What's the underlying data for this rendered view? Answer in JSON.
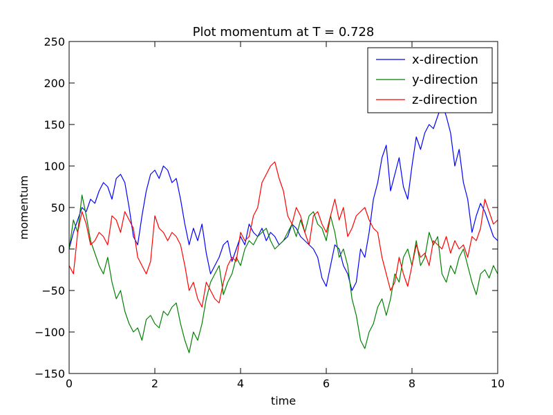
{
  "chart_data": {
    "type": "line",
    "title": "Plot momentum at T = 0.728",
    "xlabel": "time",
    "ylabel": "momentum",
    "xlim": [
      0,
      10
    ],
    "ylim": [
      -150,
      250
    ],
    "xticks": [
      0,
      2,
      4,
      6,
      8,
      10
    ],
    "yticks": [
      -150,
      -100,
      -50,
      0,
      50,
      100,
      150,
      200,
      250
    ],
    "xtick_labels": [
      "0",
      "2",
      "4",
      "6",
      "8",
      "10"
    ],
    "ytick_labels": [
      "−150",
      "−100",
      "−50",
      "0",
      "50",
      "100",
      "150",
      "200",
      "250"
    ],
    "grid": false,
    "legend_position": "top-right",
    "series": [
      {
        "name": "x-direction",
        "color": "#0000ff",
        "x": [
          0,
          0.1,
          0.2,
          0.3,
          0.4,
          0.5,
          0.6,
          0.7,
          0.8,
          0.9,
          1.0,
          1.1,
          1.2,
          1.3,
          1.4,
          1.5,
          1.6,
          1.7,
          1.8,
          1.9,
          2.0,
          2.1,
          2.2,
          2.3,
          2.4,
          2.5,
          2.6,
          2.7,
          2.8,
          2.9,
          3.0,
          3.1,
          3.2,
          3.3,
          3.4,
          3.5,
          3.6,
          3.7,
          3.8,
          3.9,
          4.0,
          4.1,
          4.2,
          4.3,
          4.4,
          4.5,
          4.6,
          4.7,
          4.8,
          4.9,
          5.0,
          5.1,
          5.2,
          5.3,
          5.4,
          5.5,
          5.6,
          5.7,
          5.8,
          5.9,
          6.0,
          6.1,
          6.2,
          6.3,
          6.4,
          6.5,
          6.6,
          6.7,
          6.8,
          6.9,
          7.0,
          7.1,
          7.2,
          7.3,
          7.4,
          7.5,
          7.6,
          7.7,
          7.8,
          7.9,
          8.0,
          8.1,
          8.2,
          8.3,
          8.4,
          8.5,
          8.6,
          8.7,
          8.8,
          8.9,
          9.0,
          9.1,
          9.2,
          9.3,
          9.4,
          9.5,
          9.6,
          9.7,
          9.8,
          9.9,
          10.0
        ],
        "y": [
          0,
          20,
          35,
          50,
          45,
          60,
          55,
          70,
          80,
          75,
          60,
          85,
          90,
          80,
          50,
          15,
          5,
          40,
          70,
          90,
          95,
          85,
          100,
          95,
          80,
          85,
          60,
          30,
          5,
          25,
          10,
          30,
          -5,
          -30,
          -20,
          -10,
          5,
          10,
          -15,
          0,
          15,
          5,
          30,
          20,
          15,
          25,
          10,
          20,
          15,
          5,
          10,
          15,
          30,
          25,
          15,
          10,
          5,
          0,
          -10,
          -35,
          -45,
          -20,
          5,
          0,
          -20,
          -30,
          -50,
          -40,
          0,
          -10,
          20,
          60,
          80,
          110,
          125,
          70,
          90,
          110,
          75,
          60,
          100,
          135,
          120,
          140,
          150,
          145,
          160,
          175,
          160,
          140,
          100,
          120,
          80,
          60,
          20,
          40,
          55,
          45,
          30,
          15,
          10
        ]
      },
      {
        "name": "y-direction",
        "color": "#008000",
        "x": [
          0,
          0.1,
          0.2,
          0.3,
          0.4,
          0.5,
          0.6,
          0.7,
          0.8,
          0.9,
          1.0,
          1.1,
          1.2,
          1.3,
          1.4,
          1.5,
          1.6,
          1.7,
          1.8,
          1.9,
          2.0,
          2.1,
          2.2,
          2.3,
          2.4,
          2.5,
          2.6,
          2.7,
          2.8,
          2.9,
          3.0,
          3.1,
          3.2,
          3.3,
          3.4,
          3.5,
          3.6,
          3.7,
          3.8,
          3.9,
          4.0,
          4.1,
          4.2,
          4.3,
          4.4,
          4.5,
          4.6,
          4.7,
          4.8,
          4.9,
          5.0,
          5.1,
          5.2,
          5.3,
          5.4,
          5.5,
          5.6,
          5.7,
          5.8,
          5.9,
          6.0,
          6.1,
          6.2,
          6.3,
          6.4,
          6.5,
          6.6,
          6.7,
          6.8,
          6.9,
          7.0,
          7.1,
          7.2,
          7.3,
          7.4,
          7.5,
          7.6,
          7.7,
          7.8,
          7.9,
          8.0,
          8.1,
          8.2,
          8.3,
          8.4,
          8.5,
          8.6,
          8.7,
          8.8,
          8.9,
          9.0,
          9.1,
          9.2,
          9.3,
          9.4,
          9.5,
          9.6,
          9.7,
          9.8,
          9.9,
          10.0
        ],
        "y": [
          0,
          35,
          20,
          65,
          40,
          10,
          -5,
          -20,
          -30,
          -10,
          -40,
          -60,
          -50,
          -75,
          -90,
          -100,
          -95,
          -110,
          -85,
          -80,
          -90,
          -95,
          -75,
          -80,
          -70,
          -65,
          -90,
          -110,
          -125,
          -100,
          -110,
          -90,
          -60,
          -40,
          -30,
          -20,
          -55,
          -40,
          -30,
          -10,
          -20,
          0,
          10,
          5,
          15,
          20,
          25,
          10,
          0,
          5,
          10,
          20,
          30,
          15,
          35,
          20,
          40,
          45,
          30,
          25,
          10,
          40,
          20,
          -10,
          0,
          -20,
          -60,
          -80,
          -110,
          -120,
          -100,
          -90,
          -70,
          -60,
          -80,
          -60,
          -30,
          -40,
          -10,
          0,
          -20,
          10,
          -20,
          -10,
          20,
          5,
          15,
          -30,
          -40,
          -20,
          -30,
          -10,
          0,
          -20,
          -40,
          -55,
          -30,
          -25,
          -35,
          -20,
          -30
        ]
      },
      {
        "name": "z-direction",
        "color": "#ff0000",
        "x": [
          0,
          0.1,
          0.2,
          0.3,
          0.4,
          0.5,
          0.6,
          0.7,
          0.8,
          0.9,
          1.0,
          1.1,
          1.2,
          1.3,
          1.4,
          1.5,
          1.6,
          1.7,
          1.8,
          1.9,
          2.0,
          2.1,
          2.2,
          2.3,
          2.4,
          2.5,
          2.6,
          2.7,
          2.8,
          2.9,
          3.0,
          3.1,
          3.2,
          3.3,
          3.4,
          3.5,
          3.6,
          3.7,
          3.8,
          3.9,
          4.0,
          4.1,
          4.2,
          4.3,
          4.4,
          4.5,
          4.6,
          4.7,
          4.8,
          4.9,
          5.0,
          5.1,
          5.2,
          5.3,
          5.4,
          5.5,
          5.6,
          5.7,
          5.8,
          5.9,
          6.0,
          6.1,
          6.2,
          6.3,
          6.4,
          6.5,
          6.6,
          6.7,
          6.8,
          6.9,
          7.0,
          7.1,
          7.2,
          7.3,
          7.4,
          7.5,
          7.6,
          7.7,
          7.8,
          7.9,
          8.0,
          8.1,
          8.2,
          8.3,
          8.4,
          8.5,
          8.6,
          8.7,
          8.8,
          8.9,
          9.0,
          9.1,
          9.2,
          9.3,
          9.4,
          9.5,
          9.6,
          9.7,
          9.8,
          9.9,
          10.0
        ],
        "y": [
          -20,
          -30,
          20,
          45,
          30,
          5,
          10,
          20,
          15,
          5,
          40,
          35,
          20,
          45,
          35,
          25,
          -10,
          -20,
          -30,
          -15,
          40,
          25,
          20,
          10,
          20,
          15,
          5,
          -20,
          -50,
          -40,
          -60,
          -70,
          -40,
          -50,
          -60,
          -65,
          -40,
          -20,
          -10,
          -15,
          20,
          10,
          15,
          40,
          50,
          80,
          90,
          100,
          105,
          85,
          70,
          40,
          30,
          50,
          40,
          20,
          5,
          40,
          45,
          30,
          20,
          40,
          60,
          35,
          50,
          15,
          25,
          40,
          45,
          50,
          35,
          25,
          20,
          -10,
          -30,
          -50,
          -40,
          -10,
          -30,
          -45,
          -20,
          5,
          -10,
          -5,
          -20,
          10,
          5,
          0,
          15,
          -5,
          10,
          0,
          5,
          -10,
          15,
          10,
          25,
          60,
          45,
          30,
          35
        ]
      }
    ]
  }
}
